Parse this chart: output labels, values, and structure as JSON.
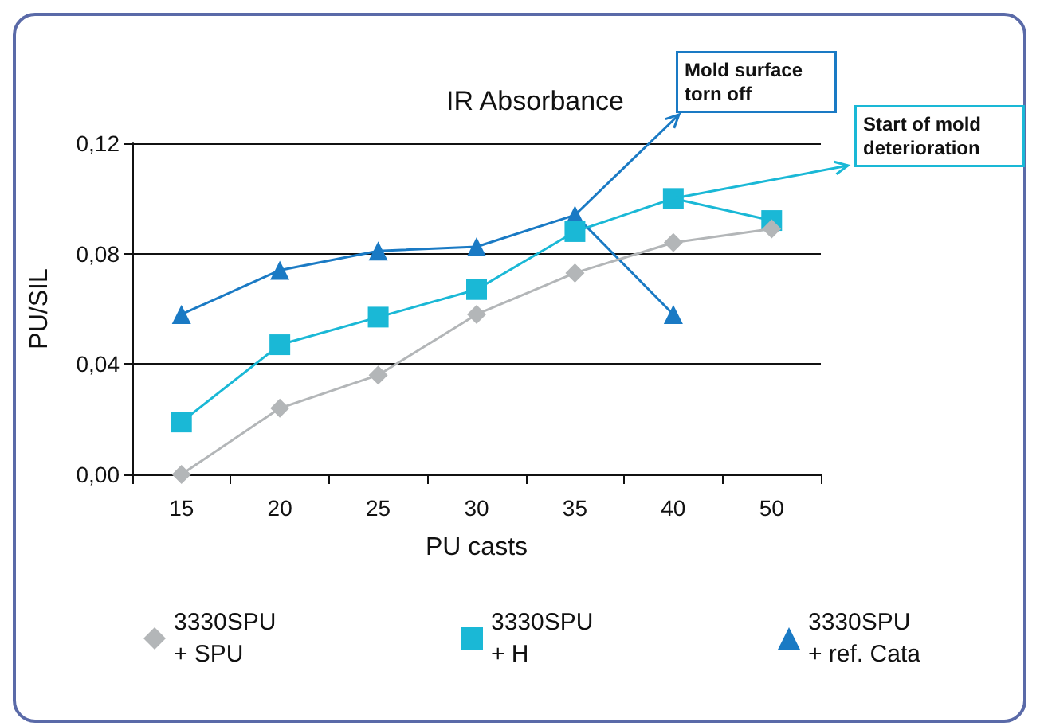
{
  "chart_data": {
    "type": "line",
    "title": "IR Absorbance",
    "xlabel": "PU casts",
    "ylabel": "PU/SIL",
    "categories": [
      "15",
      "20",
      "25",
      "30",
      "35",
      "40",
      "50"
    ],
    "series": [
      {
        "name": "3330SPU + SPU",
        "color": "#b3b6b8",
        "marker": "diamond",
        "values": [
          0,
          0.024,
          0.036,
          0.058,
          0.073,
          0.084,
          0.089
        ]
      },
      {
        "name": "3330SPU + H",
        "color": "#1ab8d6",
        "marker": "square",
        "values": [
          0.019,
          0.047,
          0.057,
          0.067,
          0.088,
          0.1,
          0.092
        ]
      },
      {
        "name": "3330SPU + ref. Cata",
        "color": "#1a7ac4",
        "marker": "triangle",
        "values": [
          0.058,
          0.074,
          0.081,
          0.0825,
          0.094,
          0.058,
          null
        ]
      }
    ],
    "ylim": [
      0,
      0.12
    ],
    "yticks": [
      {
        "value": 0,
        "label": "0,00"
      },
      {
        "value": 0.04,
        "label": "0,04"
      },
      {
        "value": 0.08,
        "label": "0,08"
      },
      {
        "value": 0.12,
        "label": "0,12"
      }
    ],
    "grid": "y",
    "legend": "bottom",
    "annotations": [
      {
        "text": "Mold surface torn off",
        "x": "35",
        "y": 0.094
      },
      {
        "text": "Start of mold deterioration",
        "x": "40",
        "y": 0.1
      }
    ]
  }
}
